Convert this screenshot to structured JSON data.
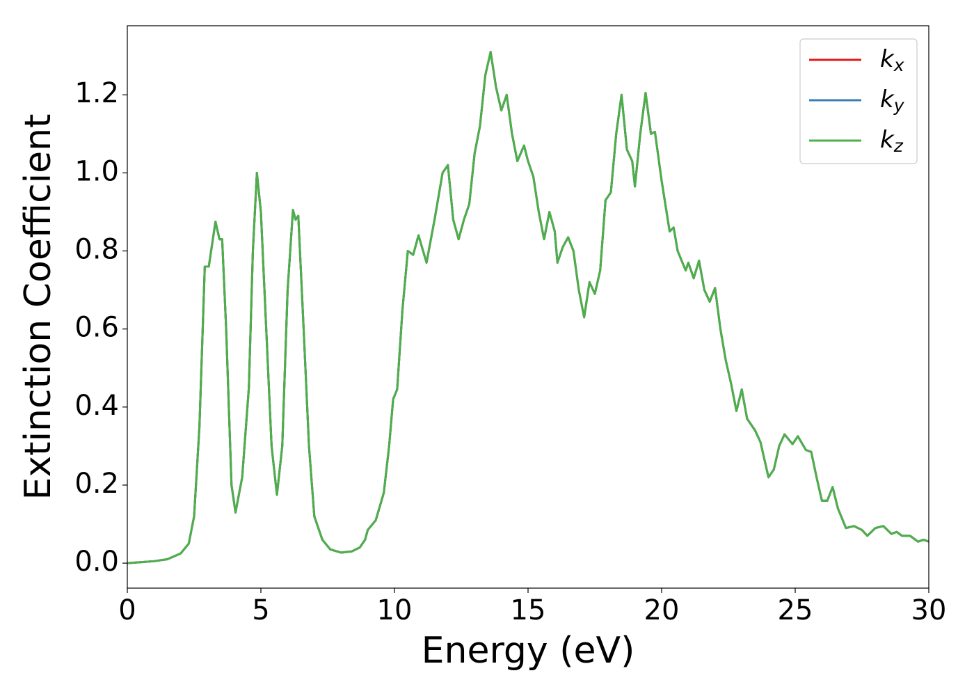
{
  "chart_data": {
    "type": "line",
    "xlabel": "Energy (eV)",
    "ylabel": "Extinction Coefficient",
    "xlim": [
      0,
      30
    ],
    "ylim": [
      -0.064,
      1.377
    ],
    "xticks": [
      0,
      5,
      10,
      15,
      20,
      25,
      30
    ],
    "yticks": [
      {
        "value": 0,
        "label": "0.0"
      },
      {
        "value": 0.2,
        "label": "0.2"
      },
      {
        "value": 0.4,
        "label": "0.4"
      },
      {
        "value": 0.6,
        "label": "0.6"
      },
      {
        "value": 0.8,
        "label": "0.8"
      },
      {
        "value": 1.0,
        "label": "1.0"
      },
      {
        "value": 1.2,
        "label": "1.2"
      }
    ],
    "legend": "upper right",
    "x": [
      0,
      1,
      1.5,
      2,
      2.3,
      2.5,
      2.7,
      2.9,
      3.05,
      3.3,
      3.45,
      3.55,
      3.7,
      3.9,
      4.05,
      4.3,
      4.55,
      4.7,
      4.85,
      5.0,
      5.2,
      5.4,
      5.6,
      5.8,
      6.0,
      6.2,
      6.3,
      6.4,
      6.6,
      6.8,
      7.0,
      7.3,
      7.6,
      8.0,
      8.4,
      8.7,
      8.9,
      9.0,
      9.3,
      9.6,
      9.8,
      9.95,
      10.1,
      10.3,
      10.5,
      10.7,
      10.9,
      11.2,
      11.5,
      11.8,
      12.0,
      12.2,
      12.4,
      12.6,
      12.8,
      13.0,
      13.2,
      13.4,
      13.6,
      13.8,
      14.0,
      14.2,
      14.4,
      14.6,
      14.85,
      15.0,
      15.2,
      15.4,
      15.6,
      15.8,
      16.0,
      16.1,
      16.3,
      16.5,
      16.7,
      16.9,
      17.1,
      17.3,
      17.5,
      17.7,
      17.9,
      18.1,
      18.3,
      18.5,
      18.7,
      18.9,
      19.0,
      19.2,
      19.4,
      19.6,
      19.75,
      20.0,
      20.3,
      20.45,
      20.6,
      20.9,
      21.0,
      21.2,
      21.4,
      21.6,
      21.8,
      22.0,
      22.2,
      22.4,
      22.6,
      22.8,
      23.0,
      23.2,
      23.5,
      23.7,
      24.0,
      24.2,
      24.4,
      24.6,
      24.9,
      25.1,
      25.4,
      25.6,
      25.8,
      26.0,
      26.2,
      26.4,
      26.6,
      26.9,
      27.2,
      27.5,
      27.7,
      28.0,
      28.3,
      28.6,
      28.8,
      29.0,
      29.3,
      29.6,
      29.8,
      30.0
    ],
    "series": [
      {
        "name": "kx",
        "color": "#e41a1c",
        "values": [
          0,
          0.005,
          0.01,
          0.025,
          0.05,
          0.12,
          0.35,
          0.76,
          0.76,
          0.875,
          0.83,
          0.83,
          0.6,
          0.2,
          0.13,
          0.22,
          0.45,
          0.8,
          1.0,
          0.9,
          0.6,
          0.3,
          0.175,
          0.3,
          0.7,
          0.905,
          0.88,
          0.89,
          0.6,
          0.3,
          0.12,
          0.06,
          0.035,
          0.027,
          0.03,
          0.04,
          0.06,
          0.085,
          0.11,
          0.18,
          0.3,
          0.42,
          0.445,
          0.65,
          0.8,
          0.79,
          0.84,
          0.77,
          0.88,
          1.0,
          1.02,
          0.88,
          0.83,
          0.88,
          0.92,
          1.05,
          1.12,
          1.25,
          1.31,
          1.22,
          1.16,
          1.2,
          1.1,
          1.03,
          1.07,
          1.03,
          0.99,
          0.9,
          0.83,
          0.9,
          0.85,
          0.77,
          0.81,
          0.835,
          0.8,
          0.7,
          0.63,
          0.72,
          0.69,
          0.75,
          0.93,
          0.95,
          1.1,
          1.2,
          1.06,
          1.03,
          0.965,
          1.1,
          1.205,
          1.1,
          1.105,
          0.98,
          0.85,
          0.86,
          0.8,
          0.75,
          0.77,
          0.73,
          0.775,
          0.7,
          0.67,
          0.705,
          0.6,
          0.52,
          0.46,
          0.39,
          0.445,
          0.37,
          0.34,
          0.31,
          0.22,
          0.24,
          0.3,
          0.33,
          0.305,
          0.325,
          0.29,
          0.285,
          0.22,
          0.16,
          0.16,
          0.195,
          0.14,
          0.09,
          0.095,
          0.085,
          0.07,
          0.09,
          0.095,
          0.075,
          0.08,
          0.07,
          0.07,
          0.055,
          0.06,
          0.055
        ]
      },
      {
        "name": "ky",
        "color": "#377eb8",
        "values": [
          0,
          0.005,
          0.01,
          0.025,
          0.05,
          0.12,
          0.35,
          0.76,
          0.76,
          0.875,
          0.83,
          0.83,
          0.6,
          0.2,
          0.13,
          0.22,
          0.45,
          0.8,
          1.0,
          0.9,
          0.6,
          0.3,
          0.175,
          0.3,
          0.7,
          0.905,
          0.88,
          0.89,
          0.6,
          0.3,
          0.12,
          0.06,
          0.035,
          0.027,
          0.03,
          0.04,
          0.06,
          0.085,
          0.11,
          0.18,
          0.3,
          0.42,
          0.445,
          0.65,
          0.8,
          0.79,
          0.84,
          0.77,
          0.88,
          1.0,
          1.02,
          0.88,
          0.83,
          0.88,
          0.92,
          1.05,
          1.12,
          1.25,
          1.31,
          1.22,
          1.16,
          1.2,
          1.1,
          1.03,
          1.07,
          1.03,
          0.99,
          0.9,
          0.83,
          0.9,
          0.85,
          0.77,
          0.81,
          0.835,
          0.8,
          0.7,
          0.63,
          0.72,
          0.69,
          0.75,
          0.93,
          0.95,
          1.1,
          1.2,
          1.06,
          1.03,
          0.965,
          1.1,
          1.205,
          1.1,
          1.105,
          0.98,
          0.85,
          0.86,
          0.8,
          0.75,
          0.77,
          0.73,
          0.775,
          0.7,
          0.67,
          0.705,
          0.6,
          0.52,
          0.46,
          0.39,
          0.445,
          0.37,
          0.34,
          0.31,
          0.22,
          0.24,
          0.3,
          0.33,
          0.305,
          0.325,
          0.29,
          0.285,
          0.22,
          0.16,
          0.16,
          0.195,
          0.14,
          0.09,
          0.095,
          0.085,
          0.07,
          0.09,
          0.095,
          0.075,
          0.08,
          0.07,
          0.07,
          0.055,
          0.06,
          0.055
        ]
      },
      {
        "name": "kz",
        "color": "#4daf4a",
        "values": [
          0,
          0.005,
          0.01,
          0.025,
          0.05,
          0.12,
          0.35,
          0.76,
          0.76,
          0.875,
          0.83,
          0.83,
          0.6,
          0.2,
          0.13,
          0.22,
          0.45,
          0.8,
          1.0,
          0.9,
          0.6,
          0.3,
          0.175,
          0.3,
          0.7,
          0.905,
          0.88,
          0.89,
          0.6,
          0.3,
          0.12,
          0.06,
          0.035,
          0.027,
          0.03,
          0.04,
          0.06,
          0.085,
          0.11,
          0.18,
          0.3,
          0.42,
          0.445,
          0.65,
          0.8,
          0.79,
          0.84,
          0.77,
          0.88,
          1.0,
          1.02,
          0.88,
          0.83,
          0.88,
          0.92,
          1.05,
          1.12,
          1.25,
          1.31,
          1.22,
          1.16,
          1.2,
          1.1,
          1.03,
          1.07,
          1.03,
          0.99,
          0.9,
          0.83,
          0.9,
          0.85,
          0.77,
          0.81,
          0.835,
          0.8,
          0.7,
          0.63,
          0.72,
          0.69,
          0.75,
          0.93,
          0.95,
          1.1,
          1.2,
          1.06,
          1.03,
          0.965,
          1.1,
          1.205,
          1.1,
          1.105,
          0.98,
          0.85,
          0.86,
          0.8,
          0.75,
          0.77,
          0.73,
          0.775,
          0.7,
          0.67,
          0.705,
          0.6,
          0.52,
          0.46,
          0.39,
          0.445,
          0.37,
          0.34,
          0.31,
          0.22,
          0.24,
          0.3,
          0.33,
          0.305,
          0.325,
          0.29,
          0.285,
          0.22,
          0.16,
          0.16,
          0.195,
          0.14,
          0.09,
          0.095,
          0.085,
          0.07,
          0.09,
          0.095,
          0.075,
          0.08,
          0.07,
          0.07,
          0.055,
          0.06,
          0.055
        ]
      }
    ]
  }
}
